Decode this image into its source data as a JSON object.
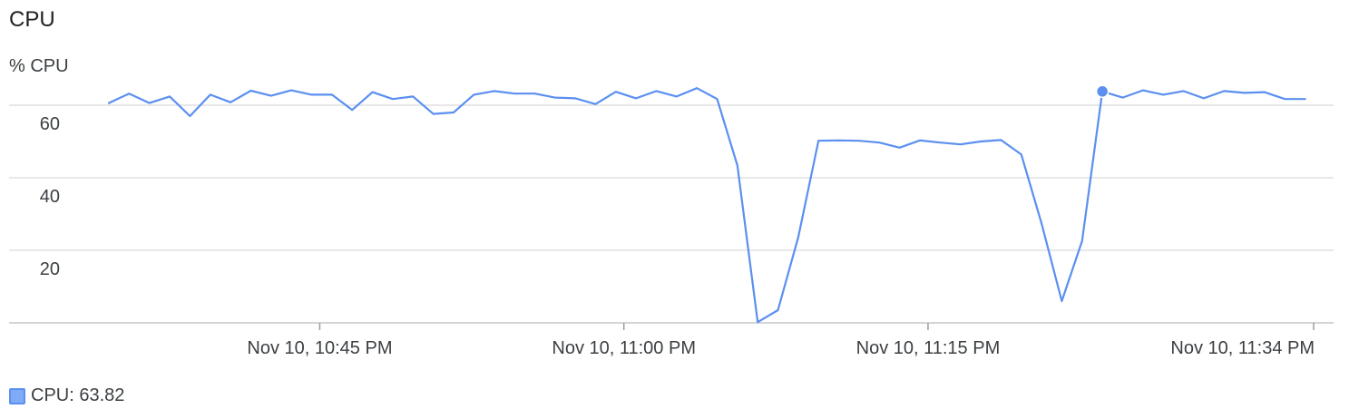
{
  "chart_data": {
    "type": "line",
    "title": "CPU",
    "ylabel": "% CPU",
    "xlabel": "",
    "ylim": [
      0,
      60
    ],
    "yticks": [
      "20",
      "40",
      "60"
    ],
    "ytick_values": [
      20,
      40,
      60
    ],
    "grid": true,
    "legend_placement": "bottom-left",
    "xticks": [
      {
        "label": "Nov 10, 10:45 PM",
        "minute": 45
      },
      {
        "label": "Nov 10, 11:00 PM",
        "minute": 60
      },
      {
        "label": "Nov 10, 11:15 PM",
        "minute": 75
      },
      {
        "label": "Nov 10, 11:34 PM",
        "minute": 94
      }
    ],
    "series": [
      {
        "name": "CPU",
        "color": "#5b8ff0",
        "x": [
          34.6,
          35.6,
          36.6,
          37.6,
          38.6,
          39.6,
          40.6,
          41.6,
          42.6,
          43.6,
          44.6,
          45.6,
          46.6,
          47.6,
          48.6,
          49.6,
          50.6,
          51.6,
          52.6,
          53.6,
          54.6,
          55.6,
          56.6,
          57.6,
          58.6,
          59.6,
          60.6,
          61.6,
          62.6,
          63.6,
          64.6,
          65.6,
          66.6,
          67.6,
          68.6,
          69.6,
          70.6,
          71.6,
          72.6,
          73.6,
          74.6,
          75.6,
          76.6,
          77.6,
          78.6,
          79.6,
          80.6,
          81.6,
          82.6,
          83.6,
          84.6,
          85.6,
          86.6,
          87.6,
          88.6,
          89.6,
          90.6,
          91.6,
          92.6,
          93.6
        ],
        "values": [
          60.6,
          63.2,
          60.6,
          62.4,
          57.0,
          62.9,
          60.8,
          64.0,
          62.6,
          64.1,
          62.9,
          62.9,
          58.7,
          63.6,
          61.7,
          62.4,
          57.6,
          58.0,
          62.9,
          63.9,
          63.2,
          63.2,
          62.1,
          61.9,
          60.3,
          63.7,
          61.9,
          63.9,
          62.4,
          64.7,
          61.7,
          43.4,
          0.2,
          3.5,
          23.6,
          50.2,
          50.3,
          50.2,
          49.7,
          48.3,
          50.3,
          49.7,
          49.2,
          50.0,
          50.4,
          46.4,
          27.4,
          6.0,
          22.6,
          63.8,
          62.1,
          64.1,
          62.9,
          63.9,
          61.9,
          63.9,
          63.4,
          63.6,
          61.7,
          61.7
        ]
      }
    ],
    "highlight": {
      "index": 49,
      "value": 63.82
    }
  },
  "legend": {
    "label": "CPU:",
    "value": "63.82",
    "color": "#5b8ff0"
  }
}
